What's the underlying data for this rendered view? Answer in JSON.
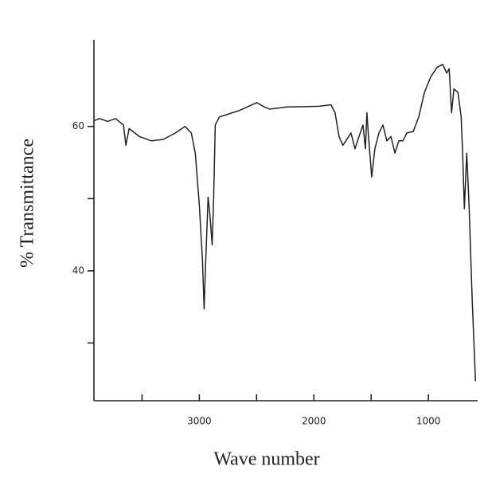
{
  "chart_data": {
    "type": "line",
    "x_label": "Wave number",
    "y_label": "% Transmittance",
    "xlim": [
      3920,
      570
    ],
    "xticks": [
      3000,
      2000,
      1000
    ],
    "xminor_ticks": [
      3500,
      2500,
      1500
    ],
    "ylim": [
      22,
      72
    ],
    "yticks": [
      40,
      60
    ],
    "yminor_ticks": [
      30,
      50
    ],
    "color": "#222222",
    "x": [
      3920,
      3871,
      3800,
      3732,
      3662,
      3641,
      3613,
      3523,
      3418,
      3314,
      3209,
      3125,
      3070,
      3035,
      3000,
      2972,
      2958,
      2944,
      2923,
      2909,
      2888,
      2875,
      2861,
      2826,
      2652,
      2498,
      2443,
      2387,
      2233,
      1955,
      1850,
      1815,
      1780,
      1746,
      1676,
      1641,
      1606,
      1571,
      1550,
      1537,
      1523,
      1495,
      1467,
      1432,
      1397,
      1362,
      1327,
      1292,
      1258,
      1223,
      1188,
      1132,
      1084,
      1035,
      979,
      924,
      875,
      840,
      819,
      798,
      777,
      742,
      714,
      700,
      686,
      665,
      645,
      617,
      589
    ],
    "values": [
      60.8,
      61.1,
      60.7,
      61.1,
      60.2,
      57.4,
      59.7,
      58.6,
      58,
      58.2,
      59.1,
      60,
      59.1,
      56.3,
      49.1,
      41.3,
      34.7,
      41.3,
      50.2,
      48,
      43.6,
      50.2,
      60.2,
      61.3,
      62.2,
      63.3,
      62.8,
      62.4,
      62.7,
      62.8,
      63,
      61.9,
      58.6,
      57.4,
      59.1,
      56.9,
      58.6,
      60.2,
      56.9,
      61.9,
      58.6,
      53,
      56.9,
      59.1,
      60.2,
      58,
      58.6,
      56.3,
      58,
      58,
      59.1,
      59.3,
      61.3,
      64.7,
      66.9,
      68.2,
      68.6,
      67.4,
      68,
      61.9,
      65.2,
      64.7,
      61.3,
      55.8,
      48.6,
      56.3,
      49.1,
      35.8,
      24.7
    ]
  }
}
